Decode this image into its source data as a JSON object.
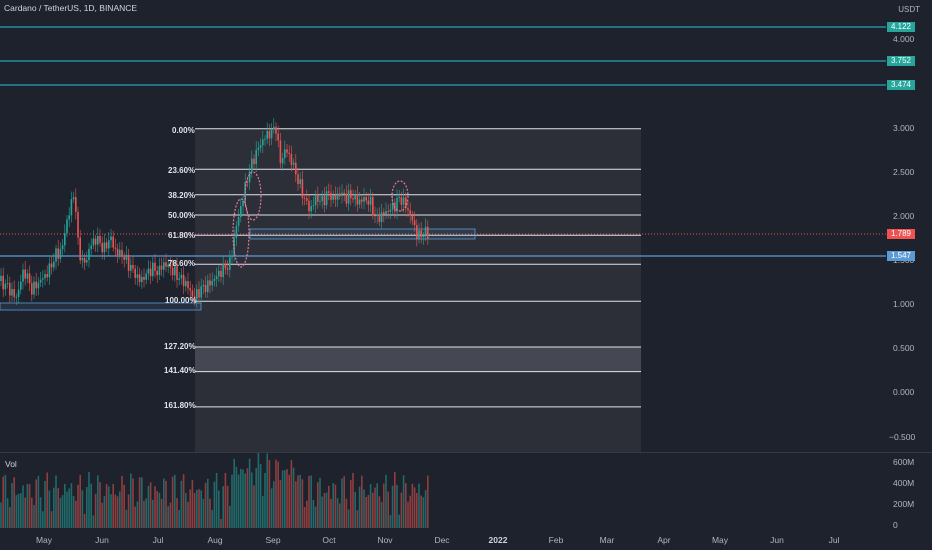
{
  "chart_title": "Cardano / TetherUS, 1D, BINANCE",
  "currency": "USDT",
  "volume_label": "Vol",
  "colors": {
    "background": "#1e222d",
    "up": "#26a69a",
    "down": "#ef5350",
    "horizontal_line": "#26c6da",
    "fib_line": "#e0e3eb",
    "annotation": "#e07a94",
    "current_price": "#ef5350",
    "support": "#5b9bd5"
  },
  "price_axis": {
    "ticks": [
      "4.000",
      "3.000",
      "2.500",
      "2.000",
      "1.500",
      "1.000",
      "0.500",
      "0.000",
      "−0.500"
    ],
    "tick_values": [
      4.0,
      3.0,
      2.5,
      2.0,
      1.5,
      1.0,
      0.5,
      0.0,
      -0.5
    ]
  },
  "volume_axis": {
    "ticks": [
      "600M",
      "400M",
      "200M",
      "0"
    ]
  },
  "price_tags": {
    "line_1": "4.122",
    "line_2": "3.752",
    "line_3": "3.474",
    "current": "1.789",
    "support": "1.547"
  },
  "fib_levels": [
    {
      "label": "0.00%",
      "value": 2.98
    },
    {
      "label": "23.60%",
      "value": 2.52
    },
    {
      "label": "38.20%",
      "value": 2.23
    },
    {
      "label": "50.00%",
      "value": 2.0
    },
    {
      "label": "61.80%",
      "value": 1.77
    },
    {
      "label": "78.60%",
      "value": 1.44
    },
    {
      "label": "100.00%",
      "value": 1.02
    },
    {
      "label": "127.20%",
      "value": 0.5
    },
    {
      "label": "141.40%",
      "value": 0.22
    },
    {
      "label": "161.80%",
      "value": -0.18
    }
  ],
  "time_axis": [
    "May",
    "Jun",
    "Jul",
    "Aug",
    "Sep",
    "Oct",
    "Nov",
    "Dec",
    "2022",
    "Feb",
    "Mar",
    "Apr",
    "May",
    "Jun",
    "Jul"
  ],
  "time_axis_bold": "2022"
}
